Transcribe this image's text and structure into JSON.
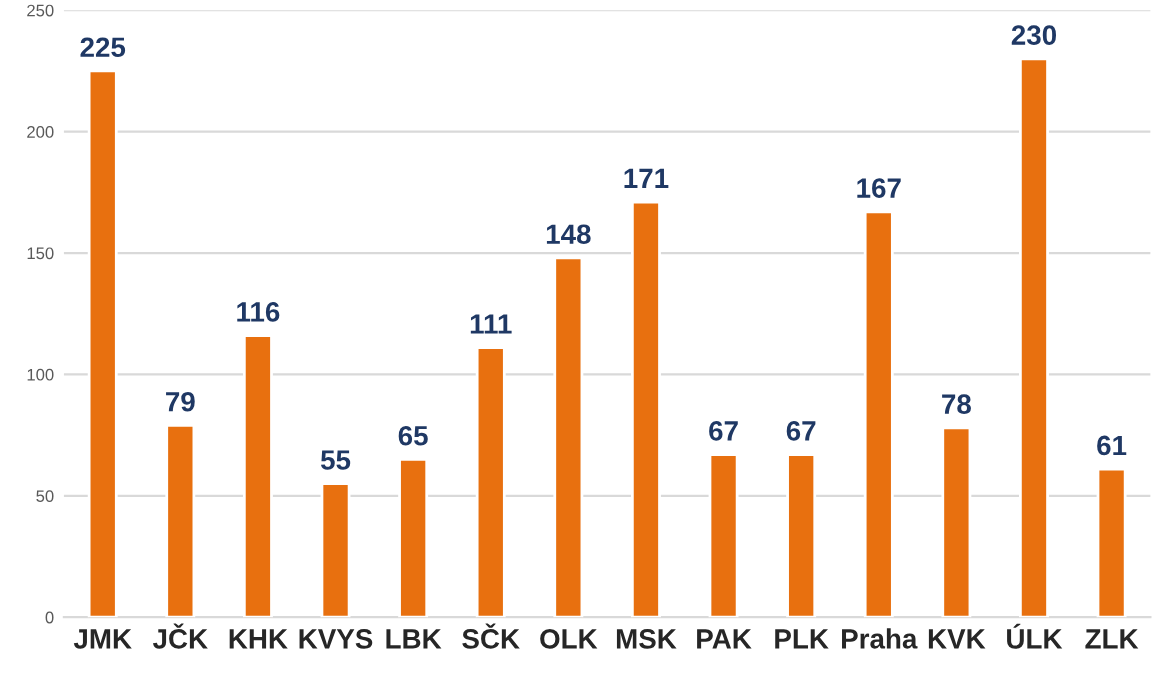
{
  "chart_data": {
    "type": "bar",
    "categories": [
      "JMK",
      "JČK",
      "KHK",
      "KVYS",
      "LBK",
      "SČK",
      "OLK",
      "MSK",
      "PAK",
      "PLK",
      "Praha",
      "KVK",
      "ÚLK",
      "ZLK"
    ],
    "values": [
      225,
      79,
      116,
      55,
      65,
      111,
      148,
      171,
      67,
      67,
      167,
      78,
      230,
      61
    ],
    "color": "#e8700f",
    "ylim": [
      0,
      250
    ],
    "yticks": [
      0,
      50,
      100,
      150,
      200,
      250
    ],
    "grid": "y",
    "data_labels": true,
    "legend": false
  }
}
